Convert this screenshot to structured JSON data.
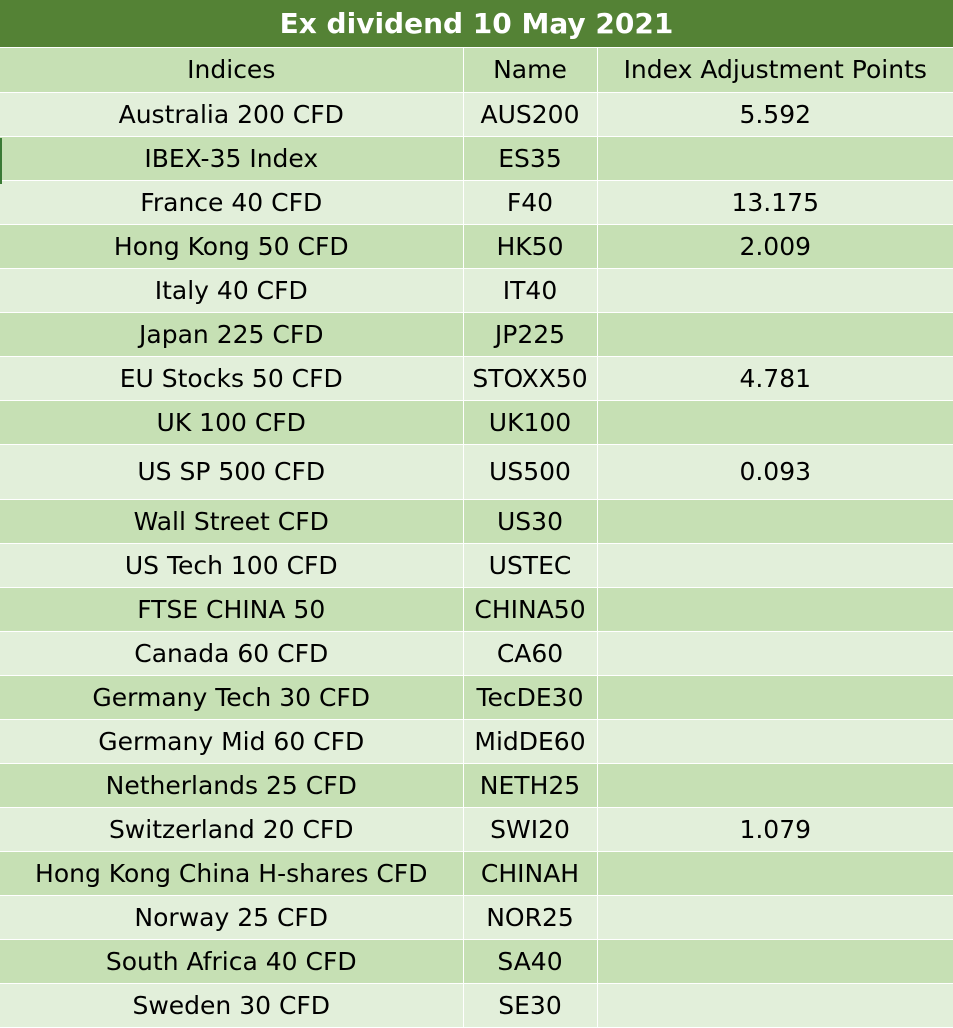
{
  "title": "Ex dividend 10 May 2021",
  "columns": [
    "Indices",
    "Name",
    "Index Adjustment Points"
  ],
  "rows": [
    {
      "index": "Australia 200 CFD",
      "name": "AUS200",
      "points": "5.592"
    },
    {
      "index": "IBEX-35 Index",
      "name": "ES35",
      "points": ""
    },
    {
      "index": "France 40 CFD",
      "name": "F40",
      "points": "13.175"
    },
    {
      "index": "Hong Kong 50 CFD",
      "name": "HK50",
      "points": "2.009"
    },
    {
      "index": "Italy 40 CFD",
      "name": "IT40",
      "points": ""
    },
    {
      "index": "Japan 225 CFD",
      "name": "JP225",
      "points": ""
    },
    {
      "index": "EU Stocks 50 CFD",
      "name": "STOXX50",
      "points": "4.781"
    },
    {
      "index": "UK 100 CFD",
      "name": "UK100",
      "points": ""
    },
    {
      "index": "US SP 500 CFD",
      "name": "US500",
      "points": "0.093"
    },
    {
      "index": "Wall Street CFD",
      "name": "US30",
      "points": ""
    },
    {
      "index": "US Tech 100 CFD",
      "name": "USTEC",
      "points": ""
    },
    {
      "index": "FTSE CHINA 50",
      "name": "CHINA50",
      "points": ""
    },
    {
      "index": "Canada 60 CFD",
      "name": "CA60",
      "points": ""
    },
    {
      "index": "Germany Tech 30 CFD",
      "name": "TecDE30",
      "points": ""
    },
    {
      "index": "Germany Mid 60 CFD",
      "name": "MidDE60",
      "points": ""
    },
    {
      "index": "Netherlands 25 CFD",
      "name": "NETH25",
      "points": ""
    },
    {
      "index": "Switzerland 20 CFD",
      "name": "SWI20",
      "points": "1.079"
    },
    {
      "index": "Hong Kong China H-shares CFD",
      "name": "CHINAH",
      "points": ""
    },
    {
      "index": "Norway 25 CFD",
      "name": "NOR25",
      "points": ""
    },
    {
      "index": "South Africa 40 CFD",
      "name": "SA40",
      "points": ""
    },
    {
      "index": "Sweden 30 CFD",
      "name": "SE30",
      "points": ""
    }
  ],
  "colors": {
    "title_background": "#548235",
    "header_background": "#c6e0b4",
    "row_light": "#e2efda",
    "row_dark": "#c6e0b4"
  }
}
